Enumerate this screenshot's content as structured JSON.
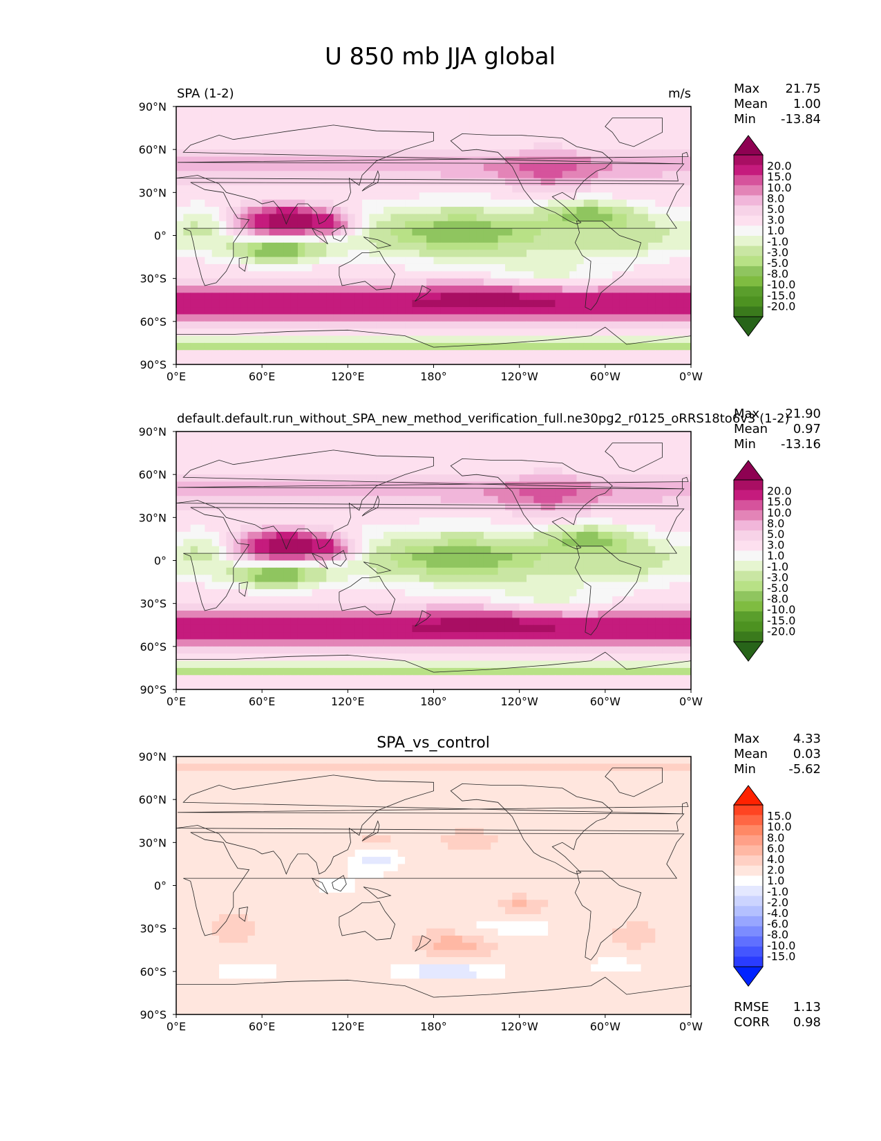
{
  "title": "U 850 mb JJA global",
  "chart_data": [
    {
      "type": "heatmap",
      "panel_title_left": "SPA (1-2)",
      "panel_title_center": "",
      "units": "m/s",
      "stats": [
        {
          "label": "Max",
          "value": "21.75"
        },
        {
          "label": "Mean",
          "value": "1.00"
        },
        {
          "label": "Min",
          "value": "-13.84"
        }
      ],
      "x_ticks": [
        "0°E",
        "60°E",
        "120°E",
        "180°",
        "120°W",
        "60°W",
        "0°W"
      ],
      "y_ticks": [
        "90°N",
        "60°N",
        "30°N",
        "0°",
        "30°S",
        "60°S",
        "90°S"
      ],
      "xlim": [
        0,
        360
      ],
      "ylim": [
        -90,
        90
      ],
      "colorbar_levels": [
        "20.0",
        "15.0",
        "10.0",
        "8.0",
        "5.0",
        "3.0",
        "1.0",
        "-1.0",
        "-3.0",
        "-5.0",
        "-8.0",
        "-10.0",
        "-15.0",
        "-20.0"
      ],
      "colorbar_colors": [
        "#8e0152",
        "#a90e63",
        "#c51b7d",
        "#d6539c",
        "#e384b7",
        "#f1b6da",
        "#f7d3e8",
        "#fde0ef",
        "#f7f7f7",
        "#e6f5d0",
        "#c9e6a3",
        "#b8e186",
        "#8fc55f",
        "#7fbc41",
        "#5a9e2c",
        "#4d9221",
        "#3a7a1c",
        "#276419"
      ],
      "field": "U850"
    },
    {
      "type": "heatmap",
      "panel_title_left": "default.default.run_without_SPA_new_method_verification_full.ne30pg2_r0125_oRRS18to6v3 (1-2)",
      "panel_title_center": "",
      "units": "m/s",
      "stats": [
        {
          "label": "Max",
          "value": "21.90"
        },
        {
          "label": "Mean",
          "value": "0.97"
        },
        {
          "label": "Min",
          "value": "-13.16"
        }
      ],
      "x_ticks": [
        "0°E",
        "60°E",
        "120°E",
        "180°",
        "120°W",
        "60°W",
        "0°W"
      ],
      "y_ticks": [
        "90°N",
        "60°N",
        "30°N",
        "0°",
        "30°S",
        "60°S",
        "90°S"
      ],
      "xlim": [
        0,
        360
      ],
      "ylim": [
        -90,
        90
      ],
      "colorbar_levels": [
        "20.0",
        "15.0",
        "10.0",
        "8.0",
        "5.0",
        "3.0",
        "1.0",
        "-1.0",
        "-3.0",
        "-5.0",
        "-8.0",
        "-10.0",
        "-15.0",
        "-20.0"
      ],
      "colorbar_colors": [
        "#8e0152",
        "#a90e63",
        "#c51b7d",
        "#d6539c",
        "#e384b7",
        "#f1b6da",
        "#f7d3e8",
        "#fde0ef",
        "#f7f7f7",
        "#e6f5d0",
        "#c9e6a3",
        "#b8e186",
        "#8fc55f",
        "#7fbc41",
        "#5a9e2c",
        "#4d9221",
        "#3a7a1c",
        "#276419"
      ],
      "field": "U850"
    },
    {
      "type": "heatmap",
      "panel_title_left": "",
      "panel_title_center": "SPA_vs_control",
      "units": "",
      "stats": [
        {
          "label": "Max",
          "value": "4.33"
        },
        {
          "label": "Mean",
          "value": "0.03"
        },
        {
          "label": "Min",
          "value": "-5.62"
        }
      ],
      "extra_stats": [
        {
          "label": "RMSE",
          "value": "1.13"
        },
        {
          "label": "CORR",
          "value": "0.98"
        }
      ],
      "x_ticks": [
        "0°E",
        "60°E",
        "120°E",
        "180°",
        "120°W",
        "60°W",
        "0°W"
      ],
      "y_ticks": [
        "90°N",
        "60°N",
        "30°N",
        "0°",
        "30°S",
        "60°S",
        "90°S"
      ],
      "xlim": [
        0,
        360
      ],
      "ylim": [
        -90,
        90
      ],
      "colorbar_levels": [
        "15.0",
        "10.0",
        "8.0",
        "6.0",
        "4.0",
        "2.0",
        "1.0",
        "-1.0",
        "-2.0",
        "-4.0",
        "-6.0",
        "-8.0",
        "-10.0",
        "-15.0"
      ],
      "colorbar_colors": [
        "#ff2200",
        "#ff4422",
        "#ff6644",
        "#ff8866",
        "#ffa088",
        "#ffb8a4",
        "#ffd0c4",
        "#ffe6de",
        "#ffffff",
        "#e4e8ff",
        "#ccd4ff",
        "#b4c0ff",
        "#98a6ff",
        "#7c8cff",
        "#6070ff",
        "#4456ff",
        "#2a3cff",
        "#0022ff"
      ],
      "field": "diff"
    }
  ]
}
